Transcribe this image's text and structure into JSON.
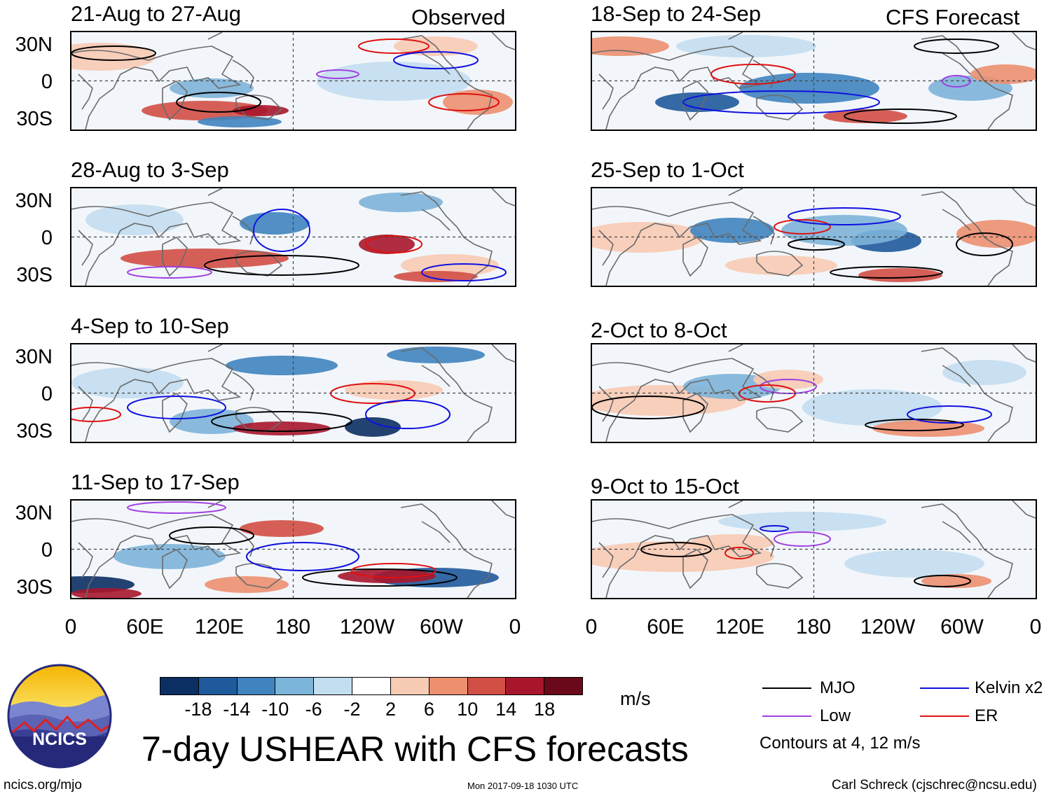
{
  "observed_label": "Observed",
  "forecast_label": "CFS Forecast",
  "observed_panels": [
    {
      "title": "21-Aug to 27-Aug"
    },
    {
      "title": "28-Aug to 3-Sep"
    },
    {
      "title": "4-Sep to 10-Sep"
    },
    {
      "title": "11-Sep to 17-Sep"
    }
  ],
  "forecast_panels": [
    {
      "title": "18-Sep to 24-Sep"
    },
    {
      "title": "25-Sep to 1-Oct"
    },
    {
      "title": "2-Oct to 8-Oct"
    },
    {
      "title": "9-Oct to 15-Oct"
    }
  ],
  "lat_labels": [
    "30N",
    "0",
    "30S"
  ],
  "lon_labels": [
    "0",
    "60E",
    "120E",
    "180",
    "120W",
    "60W",
    "0"
  ],
  "colorbar": {
    "ticks": [
      "-18",
      "-14",
      "-10",
      "-6",
      "-2",
      "2",
      "6",
      "10",
      "14",
      "18"
    ],
    "colors": [
      "#0b2f63",
      "#1f5a9c",
      "#3f84bf",
      "#7db4d9",
      "#c3def0",
      "#ffffff",
      "#f8cbb4",
      "#ec9070",
      "#d24f45",
      "#a8162b",
      "#6a0919"
    ],
    "units": "m/s"
  },
  "legend": {
    "items": [
      {
        "label": "MJO",
        "color": "#000000"
      },
      {
        "label": "Kelvin x2",
        "color": "#1010e0"
      },
      {
        "label": "Low",
        "color": "#a040e0"
      },
      {
        "label": "ER",
        "color": "#e01010"
      }
    ],
    "contours_note": "Contours at 4, 12 m/s"
  },
  "logo_text": "NCICS",
  "main_title": "7-day USHEAR with CFS forecasts",
  "footer": {
    "left": "ncics.org/mjo",
    "center": "Mon 2017-09-18 1030 UTC",
    "right": "Carl Schreck (cjschrec@ncsu.edu)"
  }
}
